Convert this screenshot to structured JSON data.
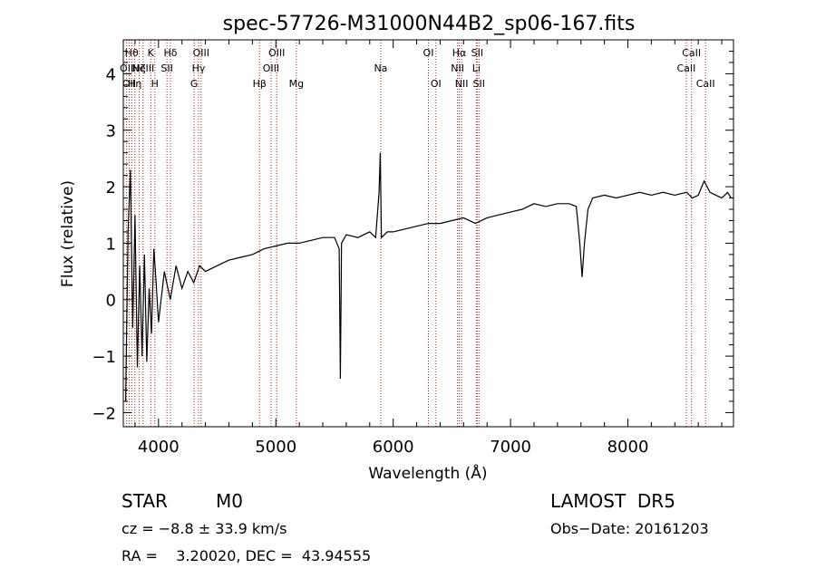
{
  "chart_data": {
    "type": "line",
    "title": "spec-57726-M31000N44B2_sp06-167.fits",
    "xlabel": "Wavelength (Å)",
    "ylabel": "Flux (relative)",
    "xlim": [
      3700,
      8900
    ],
    "ylim": [
      -2.25,
      4.6
    ],
    "x_ticks": [
      4000,
      5000,
      6000,
      7000,
      8000
    ],
    "y_ticks": [
      -2,
      -1,
      0,
      1,
      2,
      3,
      4
    ],
    "x_tick_labels": [
      "4000",
      "5000",
      "6000",
      "7000",
      "8000"
    ],
    "y_tick_labels": [
      "−2",
      "−1",
      "0",
      "1",
      "2",
      "3",
      "4"
    ],
    "grid": false,
    "spectrum": {
      "x": [
        3720,
        3740,
        3760,
        3780,
        3800,
        3820,
        3840,
        3860,
        3880,
        3900,
        3920,
        3940,
        3960,
        3980,
        4000,
        4050,
        4100,
        4150,
        4200,
        4250,
        4300,
        4350,
        4400,
        4500,
        4600,
        4700,
        4800,
        4900,
        5000,
        5100,
        5200,
        5300,
        5400,
        5500,
        5540,
        5550,
        5560,
        5600,
        5700,
        5800,
        5850,
        5880,
        5890,
        5900,
        5950,
        6000,
        6100,
        6200,
        6300,
        6400,
        6500,
        6600,
        6700,
        6800,
        6900,
        7000,
        7100,
        7200,
        7300,
        7400,
        7500,
        7560,
        7590,
        7610,
        7630,
        7660,
        7700,
        7800,
        7900,
        8000,
        8100,
        8200,
        8300,
        8400,
        8500,
        8550,
        8600,
        8650,
        8700,
        8750,
        8800,
        8850,
        8880
      ],
      "y": [
        -1.8,
        1.2,
        2.3,
        -0.5,
        1.5,
        -1.2,
        0.6,
        -1.0,
        0.8,
        -1.1,
        0.2,
        -0.6,
        0.9,
        0.3,
        -0.4,
        0.5,
        0.0,
        0.6,
        0.2,
        0.5,
        0.3,
        0.6,
        0.5,
        0.6,
        0.7,
        0.75,
        0.8,
        0.9,
        0.95,
        1.0,
        1.0,
        1.05,
        1.1,
        1.1,
        0.9,
        -1.4,
        1.0,
        1.15,
        1.1,
        1.2,
        1.1,
        1.9,
        2.6,
        1.1,
        1.2,
        1.2,
        1.25,
        1.3,
        1.35,
        1.35,
        1.4,
        1.45,
        1.35,
        1.45,
        1.5,
        1.55,
        1.6,
        1.7,
        1.65,
        1.7,
        1.7,
        1.65,
        1.0,
        0.4,
        1.0,
        1.6,
        1.8,
        1.85,
        1.8,
        1.85,
        1.9,
        1.85,
        1.9,
        1.85,
        1.9,
        1.8,
        1.85,
        2.1,
        1.9,
        1.85,
        1.8,
        1.9,
        1.8
      ],
      "color": "#000000"
    },
    "lines": [
      {
        "wave": 3728,
        "label": "OII",
        "row": 1
      },
      {
        "wave": 3750,
        "label": "OII",
        "row": 2
      },
      {
        "wave": 3771,
        "label": "Hθ",
        "row": 0
      },
      {
        "wave": 3798,
        "label": "Hη",
        "row": 2
      },
      {
        "wave": 3835,
        "label": "Hζ",
        "row": 1
      },
      {
        "wave": 3869,
        "label": "NeIII",
        "row": 1
      },
      {
        "wave": 3934,
        "label": "K",
        "row": 0
      },
      {
        "wave": 3969,
        "label": "H",
        "row": 2
      },
      {
        "wave": 4072,
        "label": "SII",
        "row": 1
      },
      {
        "wave": 4102,
        "label": "Hδ",
        "row": 0
      },
      {
        "wave": 4304,
        "label": "G",
        "row": 2
      },
      {
        "wave": 4341,
        "label": "Hγ",
        "row": 1
      },
      {
        "wave": 4363,
        "label": "OIII",
        "row": 0
      },
      {
        "wave": 4861,
        "label": "Hβ",
        "row": 2
      },
      {
        "wave": 4959,
        "label": "OIII",
        "row": 1
      },
      {
        "wave": 5007,
        "label": "OIII",
        "row": 0
      },
      {
        "wave": 5175,
        "label": "Mg",
        "row": 2
      },
      {
        "wave": 5894,
        "label": "Na",
        "row": 1
      },
      {
        "wave": 6300,
        "label": "OI",
        "row": 0
      },
      {
        "wave": 6364,
        "label": "OI",
        "row": 2
      },
      {
        "wave": 6548,
        "label": "NII",
        "row": 1
      },
      {
        "wave": 6563,
        "label": "Hα",
        "row": 0
      },
      {
        "wave": 6583,
        "label": "NII",
        "row": 2
      },
      {
        "wave": 6708,
        "label": "Li",
        "row": 1
      },
      {
        "wave": 6716,
        "label": "SII",
        "row": 0
      },
      {
        "wave": 6731,
        "label": "SII",
        "row": 2
      },
      {
        "wave": 8498,
        "label": "CaII",
        "row": 1
      },
      {
        "wave": 8542,
        "label": "CaII",
        "row": 0
      },
      {
        "wave": 8662,
        "label": "CaII",
        "row": 2
      }
    ],
    "line_color": "#b22222"
  },
  "info": {
    "class": "STAR",
    "subclass": "M0",
    "survey": "LAMOST  DR5",
    "cz": "cz = −8.8 ± 33.9 km/s",
    "obs_date": "Obs−Date: 20161203",
    "radec": "RA =    3.20020, DEC =  43.94555"
  }
}
